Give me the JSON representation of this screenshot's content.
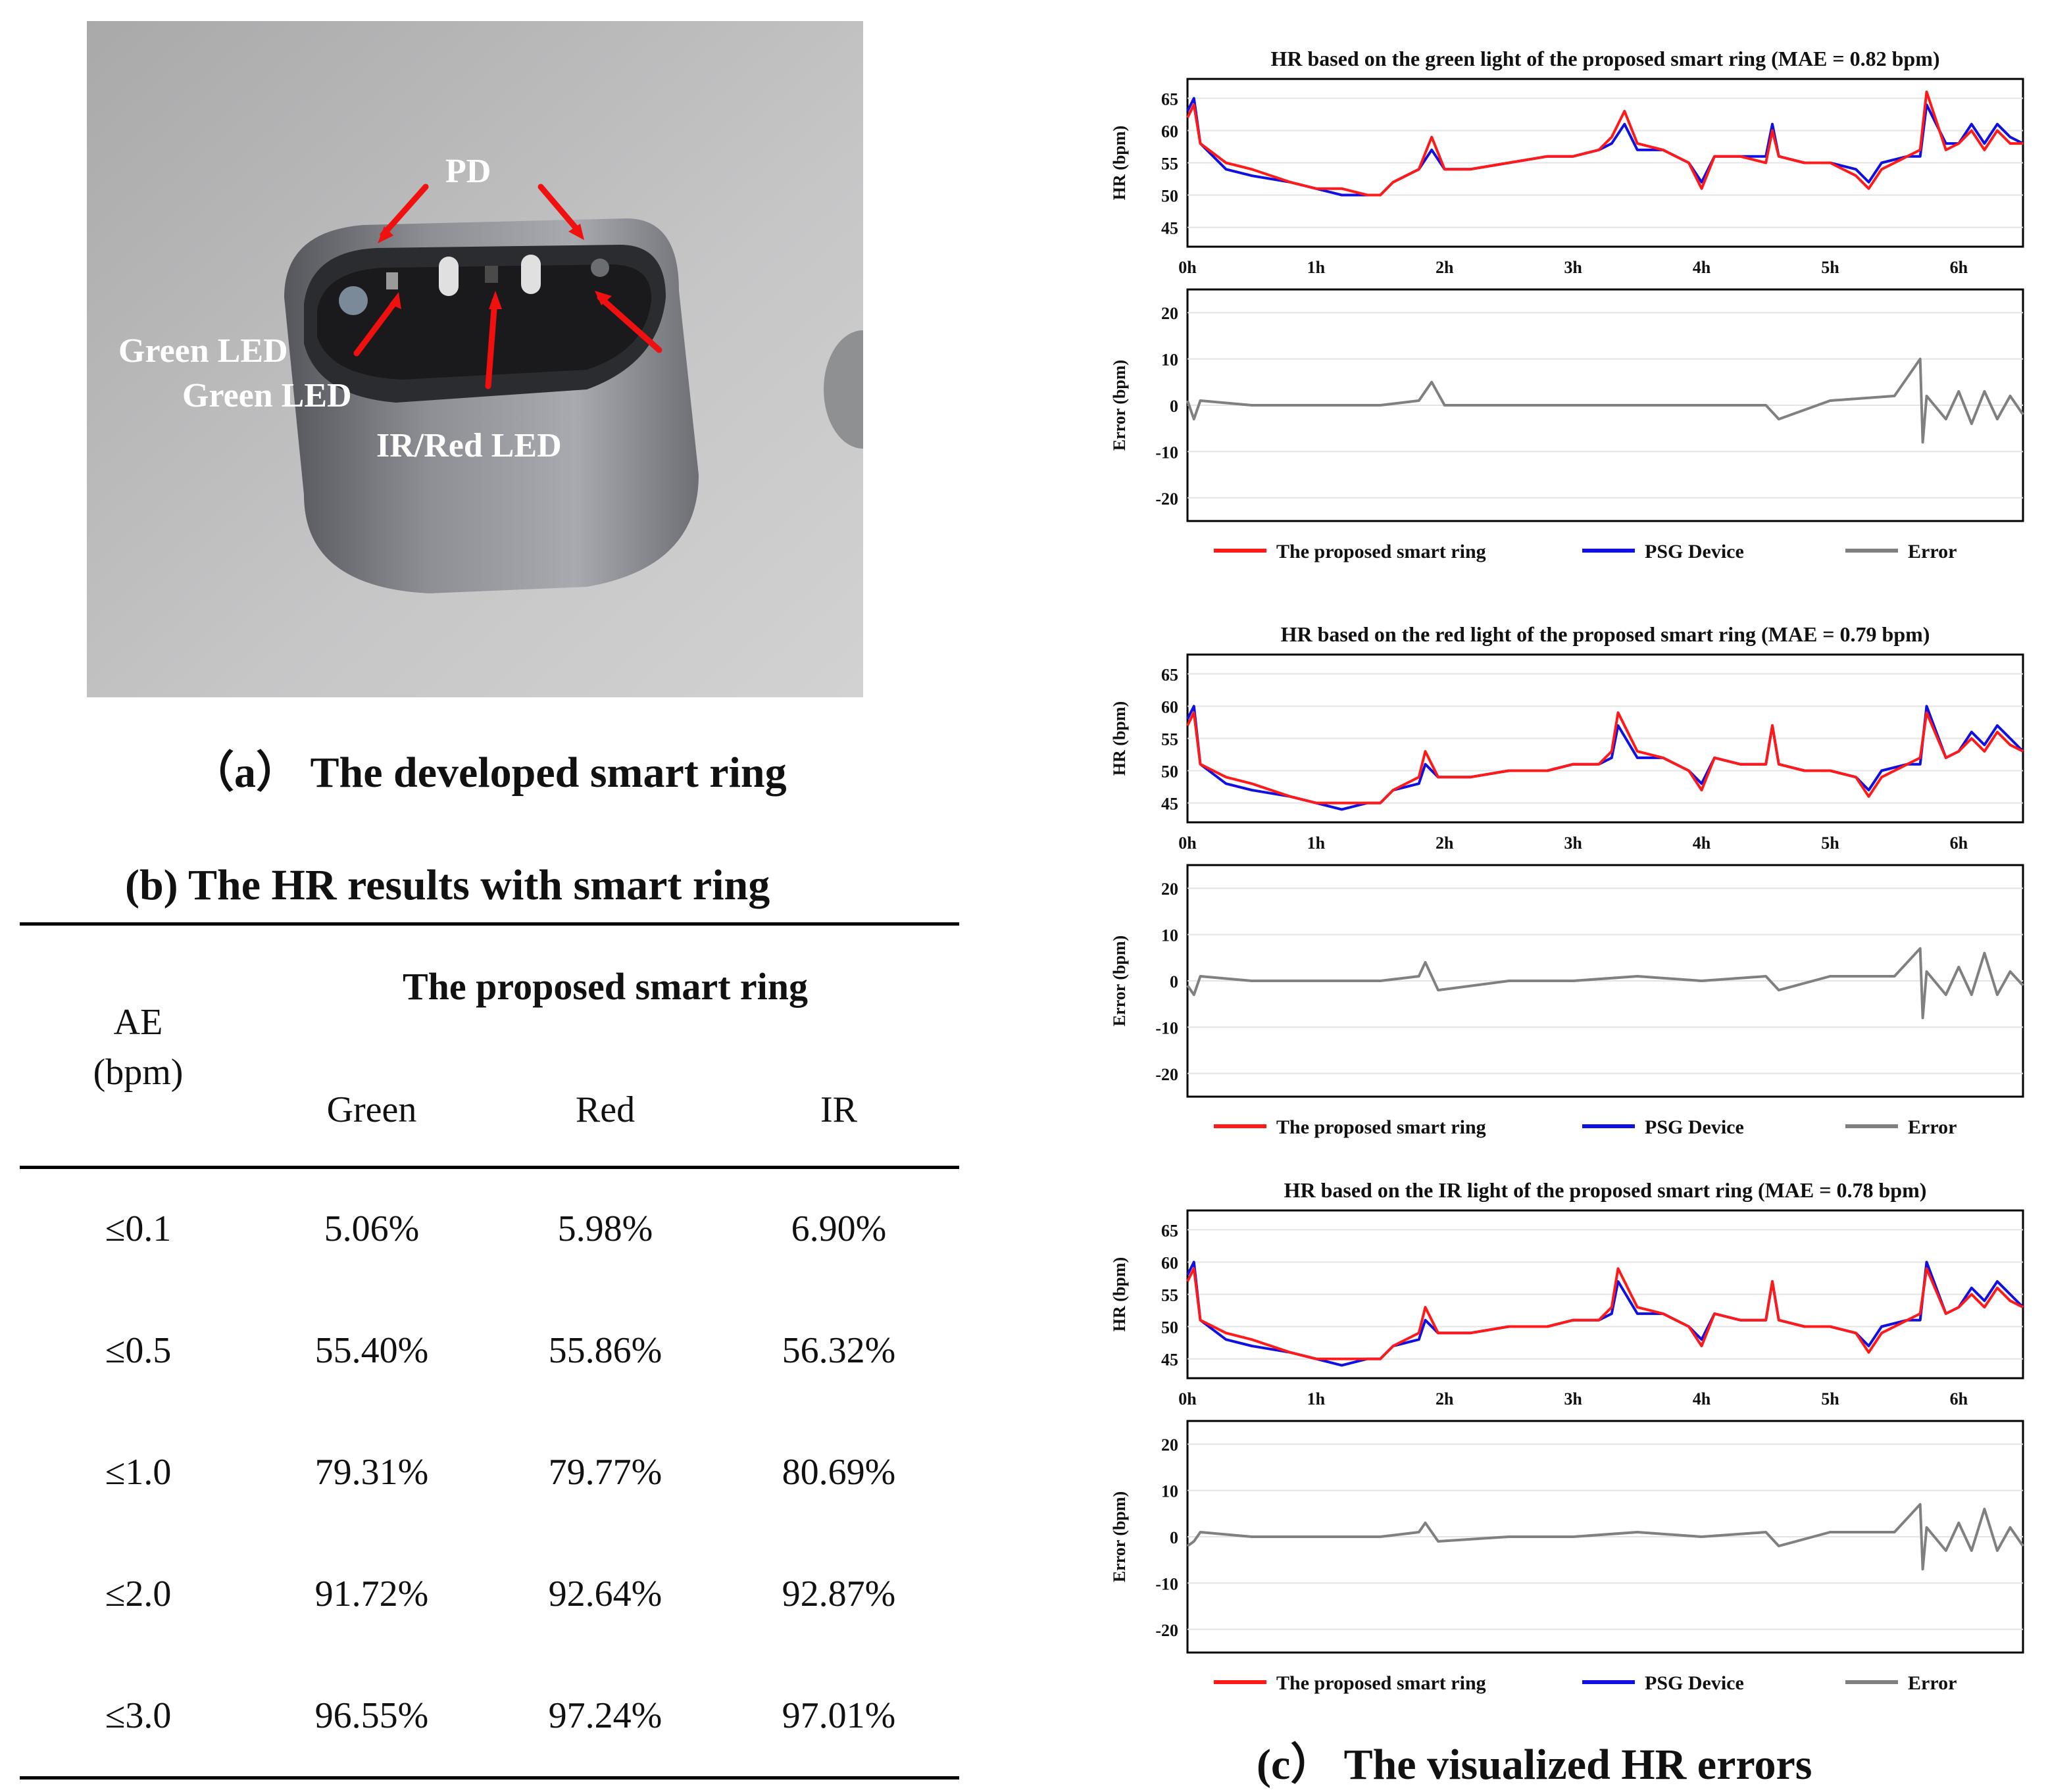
{
  "panel_a": {
    "caption": "（a） The developed smart ring",
    "labels": {
      "pd": "PD",
      "green_led_1": "Green LED",
      "green_led_2": "Green LED",
      "ir_red_led": "IR/Red LED"
    }
  },
  "panel_b": {
    "caption": "(b) The HR results with smart ring",
    "group_header": "The proposed smart ring",
    "row_header_line1": "AE",
    "row_header_line2": "(bpm)",
    "columns": [
      "Green",
      "Red",
      "IR"
    ],
    "rows": [
      {
        "ae": "≤0.1",
        "values": [
          "5.06%",
          "5.98%",
          "6.90%"
        ]
      },
      {
        "ae": "≤0.5",
        "values": [
          "55.40%",
          "55.86%",
          "56.32%"
        ]
      },
      {
        "ae": "≤1.0",
        "values": [
          "79.31%",
          "79.77%",
          "80.69%"
        ]
      },
      {
        "ae": "≤2.0",
        "values": [
          "91.72%",
          "92.64%",
          "92.87%"
        ]
      },
      {
        "ae": "≤3.0",
        "values": [
          "96.55%",
          "97.24%",
          "97.01%"
        ]
      }
    ]
  },
  "panel_c": {
    "caption": "(c） The visualized HR errors",
    "colors": {
      "ring": "#ff1a1a",
      "psg": "#1010e0",
      "error": "#808080"
    },
    "legend": [
      "The proposed smart ring",
      "PSG Device",
      "Error"
    ]
  },
  "chart_data": [
    {
      "type": "line",
      "title": "HR based on the green light of the proposed smart ring (MAE = 0.82 bpm)",
      "ylabel": "HR (bpm)",
      "yticks": [
        45,
        50,
        55,
        60,
        65
      ],
      "ylim": [
        42,
        68
      ],
      "xticks": [
        "0h",
        "1h",
        "2h",
        "3h",
        "4h",
        "5h",
        "6h"
      ],
      "xlim": [
        0,
        6.5
      ],
      "x": [
        0,
        0.05,
        0.1,
        0.3,
        0.5,
        0.8,
        1.0,
        1.2,
        1.4,
        1.5,
        1.6,
        1.8,
        1.9,
        2.0,
        2.2,
        2.5,
        2.8,
        3.0,
        3.2,
        3.3,
        3.4,
        3.5,
        3.7,
        3.9,
        4.0,
        4.1,
        4.3,
        4.5,
        4.55,
        4.6,
        4.8,
        5.0,
        5.2,
        5.3,
        5.4,
        5.6,
        5.7,
        5.75,
        5.9,
        6.0,
        6.1,
        6.2,
        6.3,
        6.4,
        6.5
      ],
      "series": [
        {
          "name": "The proposed smart ring",
          "values": [
            62,
            64,
            58,
            55,
            54,
            52,
            51,
            51,
            50,
            50,
            52,
            54,
            59,
            54,
            54,
            55,
            56,
            56,
            57,
            59,
            63,
            58,
            57,
            55,
            51,
            56,
            56,
            55,
            60,
            56,
            55,
            55,
            53,
            51,
            54,
            56,
            57,
            66,
            57,
            58,
            60,
            57,
            60,
            58,
            58
          ]
        },
        {
          "name": "PSG Device",
          "values": [
            63,
            65,
            58,
            54,
            53,
            52,
            51,
            50,
            50,
            50,
            52,
            54,
            57,
            54,
            54,
            55,
            56,
            56,
            57,
            58,
            61,
            57,
            57,
            55,
            52,
            56,
            56,
            56,
            61,
            56,
            55,
            55,
            54,
            52,
            55,
            56,
            56,
            64,
            58,
            58,
            61,
            58,
            61,
            59,
            58
          ]
        }
      ],
      "error": {
        "ylabel": "Error (bpm)",
        "yticks": [
          -20,
          -10,
          0,
          10,
          20
        ],
        "ylim": [
          -25,
          25
        ],
        "x": [
          0,
          0.05,
          0.1,
          0.5,
          1.0,
          1.5,
          1.8,
          1.9,
          2.0,
          2.5,
          3.0,
          3.5,
          4.0,
          4.5,
          4.6,
          5.0,
          5.5,
          5.7,
          5.72,
          5.75,
          5.9,
          6.0,
          6.1,
          6.2,
          6.3,
          6.4,
          6.5
        ],
        "values": [
          1,
          -3,
          1,
          0,
          0,
          0,
          1,
          5,
          0,
          0,
          0,
          0,
          0,
          0,
          -3,
          1,
          2,
          10,
          -8,
          2,
          -3,
          3,
          -4,
          3,
          -3,
          2,
          -2
        ]
      }
    },
    {
      "type": "line",
      "title": "HR based on the red light of the proposed smart ring (MAE = 0.79 bpm)",
      "ylabel": "HR (bpm)",
      "yticks": [
        45,
        50,
        55,
        60,
        65
      ],
      "ylim": [
        42,
        68
      ],
      "xticks": [
        "0h",
        "1h",
        "2h",
        "3h",
        "4h",
        "5h",
        "6h"
      ],
      "xlim": [
        0,
        6.5
      ],
      "x": [
        0,
        0.05,
        0.1,
        0.3,
        0.5,
        0.8,
        1.0,
        1.2,
        1.4,
        1.5,
        1.6,
        1.8,
        1.85,
        1.95,
        2.2,
        2.5,
        2.8,
        3.0,
        3.2,
        3.3,
        3.35,
        3.5,
        3.7,
        3.9,
        4.0,
        4.1,
        4.3,
        4.5,
        4.55,
        4.6,
        4.8,
        5.0,
        5.2,
        5.3,
        5.4,
        5.6,
        5.7,
        5.75,
        5.9,
        6.0,
        6.1,
        6.2,
        6.3,
        6.4,
        6.5
      ],
      "series": [
        {
          "name": "The proposed smart ring",
          "values": [
            57,
            59,
            51,
            49,
            48,
            46,
            45,
            45,
            45,
            45,
            47,
            49,
            53,
            49,
            49,
            50,
            50,
            51,
            51,
            53,
            59,
            53,
            52,
            50,
            47,
            52,
            51,
            51,
            57,
            51,
            50,
            50,
            49,
            46,
            49,
            51,
            52,
            59,
            52,
            53,
            55,
            53,
            56,
            54,
            53
          ]
        },
        {
          "name": "PSG Device",
          "values": [
            58,
            60,
            51,
            48,
            47,
            46,
            45,
            44,
            45,
            45,
            47,
            48,
            51,
            49,
            49,
            50,
            50,
            51,
            51,
            52,
            57,
            52,
            52,
            50,
            48,
            52,
            51,
            51,
            57,
            51,
            50,
            50,
            49,
            47,
            50,
            51,
            51,
            60,
            52,
            53,
            56,
            54,
            57,
            55,
            53
          ]
        }
      ],
      "error": {
        "ylabel": "Error (bpm)",
        "yticks": [
          -20,
          -10,
          0,
          10,
          20
        ],
        "ylim": [
          -25,
          25
        ],
        "x": [
          0,
          0.05,
          0.1,
          0.5,
          1.0,
          1.5,
          1.8,
          1.85,
          1.95,
          2.5,
          3.0,
          3.5,
          4.0,
          4.5,
          4.6,
          5.0,
          5.5,
          5.7,
          5.72,
          5.75,
          5.9,
          6.0,
          6.1,
          6.2,
          6.3,
          6.4,
          6.5
        ],
        "values": [
          -1,
          -3,
          1,
          0,
          0,
          0,
          1,
          4,
          -2,
          0,
          0,
          1,
          0,
          1,
          -2,
          1,
          1,
          7,
          -8,
          2,
          -3,
          3,
          -3,
          6,
          -3,
          2,
          -1
        ]
      }
    },
    {
      "type": "line",
      "title": "HR based on the IR light of the proposed smart ring (MAE = 0.78 bpm)",
      "ylabel": "HR (bpm)",
      "yticks": [
        45,
        50,
        55,
        60,
        65
      ],
      "ylim": [
        42,
        68
      ],
      "xticks": [
        "0h",
        "1h",
        "2h",
        "3h",
        "4h",
        "5h",
        "6h"
      ],
      "xlim": [
        0,
        6.5
      ],
      "x": [
        0,
        0.05,
        0.1,
        0.3,
        0.5,
        0.8,
        1.0,
        1.2,
        1.4,
        1.5,
        1.6,
        1.8,
        1.85,
        1.95,
        2.2,
        2.5,
        2.8,
        3.0,
        3.2,
        3.3,
        3.35,
        3.5,
        3.7,
        3.9,
        4.0,
        4.1,
        4.3,
        4.5,
        4.55,
        4.6,
        4.8,
        5.0,
        5.2,
        5.3,
        5.4,
        5.6,
        5.7,
        5.75,
        5.9,
        6.0,
        6.1,
        6.2,
        6.3,
        6.4,
        6.5
      ],
      "series": [
        {
          "name": "The proposed smart ring",
          "values": [
            57,
            59,
            51,
            49,
            48,
            46,
            45,
            45,
            45,
            45,
            47,
            49,
            53,
            49,
            49,
            50,
            50,
            51,
            51,
            53,
            59,
            53,
            52,
            50,
            47,
            52,
            51,
            51,
            57,
            51,
            50,
            50,
            49,
            46,
            49,
            51,
            52,
            59,
            52,
            53,
            55,
            53,
            56,
            54,
            53
          ]
        },
        {
          "name": "PSG Device",
          "values": [
            58,
            60,
            51,
            48,
            47,
            46,
            45,
            44,
            45,
            45,
            47,
            48,
            51,
            49,
            49,
            50,
            50,
            51,
            51,
            52,
            57,
            52,
            52,
            50,
            48,
            52,
            51,
            51,
            57,
            51,
            50,
            50,
            49,
            47,
            50,
            51,
            51,
            60,
            52,
            53,
            56,
            54,
            57,
            55,
            53
          ]
        }
      ],
      "error": {
        "ylabel": "Error (bpm)",
        "yticks": [
          -20,
          -10,
          0,
          10,
          20
        ],
        "ylim": [
          -25,
          25
        ],
        "x": [
          0,
          0.05,
          0.1,
          0.5,
          1.0,
          1.5,
          1.8,
          1.85,
          1.95,
          2.5,
          3.0,
          3.5,
          4.0,
          4.5,
          4.6,
          5.0,
          5.5,
          5.7,
          5.72,
          5.75,
          5.9,
          6.0,
          6.1,
          6.2,
          6.3,
          6.4,
          6.5
        ],
        "values": [
          -2,
          -1,
          1,
          0,
          0,
          0,
          1,
          3,
          -1,
          0,
          0,
          1,
          0,
          1,
          -2,
          1,
          1,
          7,
          -7,
          2,
          -3,
          3,
          -3,
          6,
          -3,
          2,
          -2
        ]
      }
    }
  ]
}
